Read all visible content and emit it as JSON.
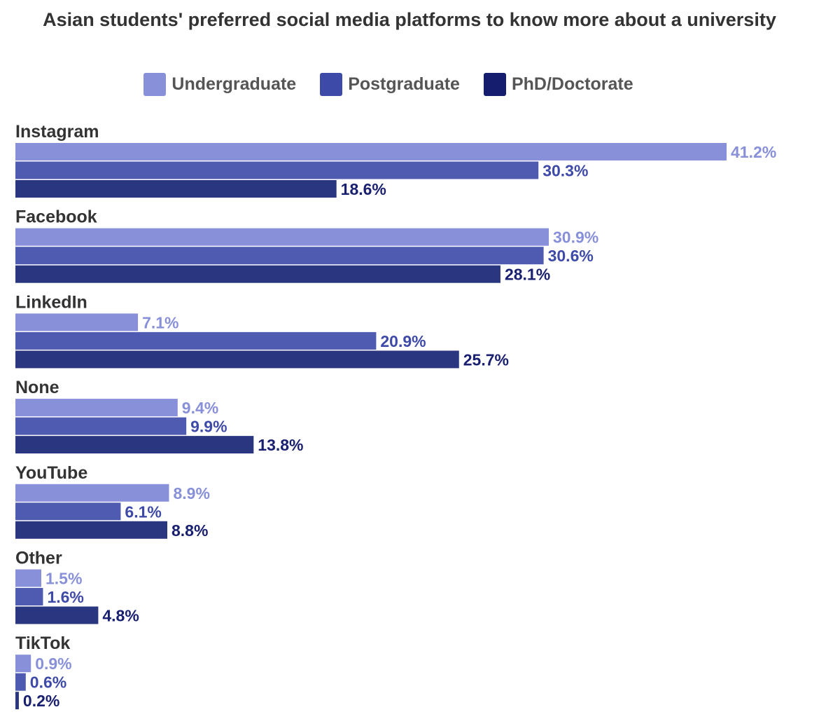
{
  "chart_data": {
    "type": "bar",
    "orientation": "horizontal",
    "title": "Asian students' preferred social media platforms to know more about a university",
    "categories": [
      "Instagram",
      "Facebook",
      "LinkedIn",
      "None",
      "YouTube",
      "Other",
      "TikTok"
    ],
    "series": [
      {
        "name": "Undergraduate",
        "values": [
          41.2,
          30.9,
          7.1,
          9.4,
          8.9,
          1.5,
          0.9
        ],
        "color": "#8890d9",
        "label_color": "#8890d9"
      },
      {
        "name": "Postgraduate",
        "values": [
          30.3,
          30.6,
          20.9,
          9.9,
          6.1,
          1.6,
          0.6
        ],
        "color": "#4f5bb0",
        "label_color": "#3e4aa8"
      },
      {
        "name": "PhD/Doctorate",
        "values": [
          18.6,
          28.1,
          25.7,
          13.8,
          8.8,
          4.8,
          0.2
        ],
        "color": "#2b3680",
        "label_color": "#1a2070"
      }
    ],
    "value_suffix": "%",
    "xlim": [
      0,
      41.2
    ],
    "grid": false,
    "legend": "top-center"
  }
}
